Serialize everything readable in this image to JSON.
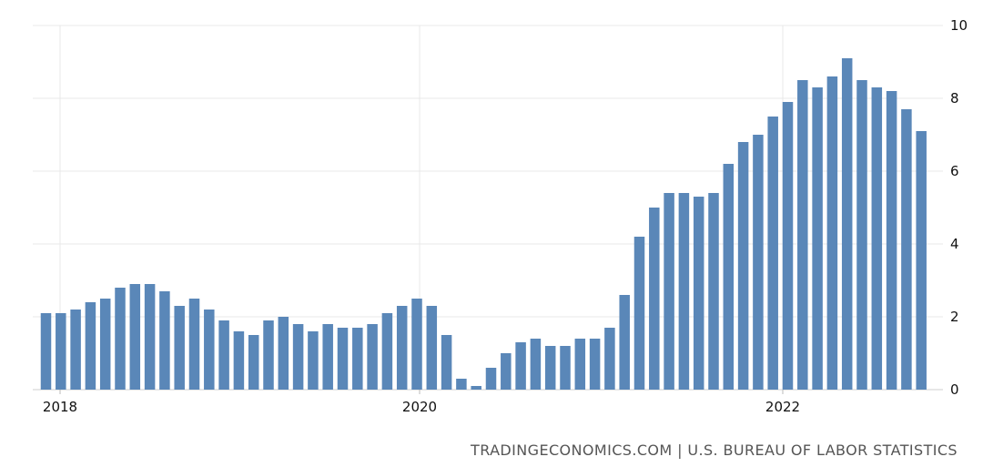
{
  "chart_data": {
    "type": "bar",
    "title": "",
    "xlabel": "",
    "ylabel": "",
    "x_tick_labels": [
      "2018",
      "2020",
      "2022"
    ],
    "y_ticks": [
      "0",
      "2",
      "4",
      "6",
      "8",
      "10"
    ],
    "ylim": [
      0,
      10
    ],
    "grid": true,
    "y_axis_side": "right",
    "bar_color": "#5a87b8",
    "grid_color": "#e8e8e8",
    "series": [
      {
        "values": [
          2.1,
          2.1,
          2.2,
          2.4,
          2.5,
          2.8,
          2.9,
          2.9,
          2.7,
          2.3,
          2.5,
          2.2,
          1.9,
          1.6,
          1.5,
          1.9,
          2.0,
          1.8,
          1.6,
          1.8,
          1.7,
          1.7,
          1.8,
          2.1,
          2.3,
          2.5,
          2.3,
          1.5,
          0.3,
          0.1,
          0.6,
          1.0,
          1.3,
          1.4,
          1.2,
          1.2,
          1.4,
          1.4,
          1.7,
          2.6,
          4.2,
          5.0,
          5.4,
          5.4,
          5.3,
          5.4,
          6.2,
          6.8,
          7.0,
          7.5,
          7.9,
          8.5,
          8.3,
          8.6,
          9.1,
          8.5,
          8.3,
          8.2,
          7.7,
          7.1
        ]
      }
    ],
    "source": "TRADINGECONOMICS.COM | U.S. BUREAU OF LABOR STATISTICS"
  }
}
